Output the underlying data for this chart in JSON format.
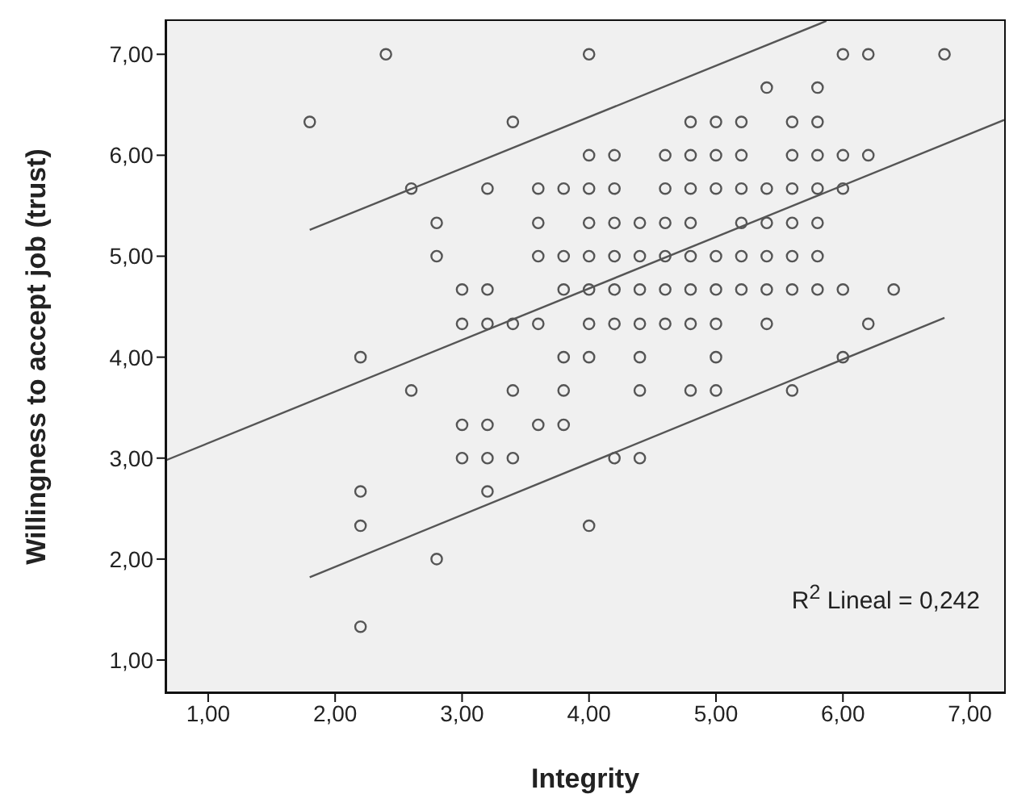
{
  "chart_data": {
    "type": "scatter",
    "xlabel": "Integrity",
    "ylabel": "Willingness to accept job (trust)",
    "annotations": [
      "R$^{2}$ Lineal = 0,242"
    ],
    "xlim": [
      0.67,
      7.27
    ],
    "ylim": [
      0.68,
      7.33
    ],
    "xticks": [
      {
        "value": 1,
        "label": "1,00"
      },
      {
        "value": 2,
        "label": "2,00"
      },
      {
        "value": 3,
        "label": "3,00"
      },
      {
        "value": 4,
        "label": "4,00"
      },
      {
        "value": 5,
        "label": "5,00"
      },
      {
        "value": 6,
        "label": "6,00"
      },
      {
        "value": 7,
        "label": "7,00"
      }
    ],
    "yticks": [
      {
        "value": 1,
        "label": "1,00"
      },
      {
        "value": 2,
        "label": "2,00"
      },
      {
        "value": 3,
        "label": "3,00"
      },
      {
        "value": 4,
        "label": "4,00"
      },
      {
        "value": 5,
        "label": "5,00"
      },
      {
        "value": 6,
        "label": "6,00"
      },
      {
        "value": 7,
        "label": "7,00"
      }
    ],
    "series": [
      {
        "marker": "circle",
        "color": "#555555",
        "x": [
          2.4,
          4.0,
          6.0,
          6.2,
          6.8,
          5.4,
          5.8,
          1.8,
          3.4,
          4.8,
          5.0,
          5.2,
          5.6,
          5.8,
          4.0,
          4.2,
          4.6,
          4.8,
          5.0,
          5.2,
          5.6,
          5.8,
          6.0,
          6.2,
          2.6,
          3.2,
          3.6,
          3.8,
          4.0,
          4.2,
          4.6,
          4.8,
          5.0,
          5.2,
          5.4,
          5.6,
          5.8,
          6.0,
          2.8,
          3.6,
          4.0,
          4.2,
          4.4,
          4.6,
          4.8,
          5.2,
          5.4,
          5.6,
          5.8,
          2.8,
          3.6,
          3.8,
          4.0,
          4.2,
          4.4,
          4.6,
          4.8,
          5.0,
          5.2,
          5.4,
          5.6,
          5.8,
          3.0,
          3.2,
          3.8,
          4.0,
          4.2,
          4.4,
          4.6,
          4.8,
          5.0,
          5.2,
          5.4,
          5.6,
          5.8,
          6.0,
          6.4,
          3.0,
          3.2,
          3.4,
          3.6,
          4.0,
          4.2,
          4.4,
          4.6,
          4.8,
          5.0,
          5.4,
          6.2,
          2.2,
          3.8,
          4.0,
          4.4,
          5.0,
          6.0,
          2.6,
          3.4,
          3.8,
          4.4,
          4.8,
          5.0,
          5.6,
          3.0,
          3.2,
          3.6,
          3.8,
          3.0,
          3.2,
          3.4,
          4.2,
          4.4,
          2.2,
          3.2,
          2.2,
          4.0,
          2.8,
          2.2
        ],
        "values": [
          7.0,
          7.0,
          7.0,
          7.0,
          7.0,
          6.67,
          6.67,
          6.33,
          6.33,
          6.33,
          6.33,
          6.33,
          6.33,
          6.33,
          6.0,
          6.0,
          6.0,
          6.0,
          6.0,
          6.0,
          6.0,
          6.0,
          6.0,
          6.0,
          5.67,
          5.67,
          5.67,
          5.67,
          5.67,
          5.67,
          5.67,
          5.67,
          5.67,
          5.67,
          5.67,
          5.67,
          5.67,
          5.67,
          5.33,
          5.33,
          5.33,
          5.33,
          5.33,
          5.33,
          5.33,
          5.33,
          5.33,
          5.33,
          5.33,
          5.0,
          5.0,
          5.0,
          5.0,
          5.0,
          5.0,
          5.0,
          5.0,
          5.0,
          5.0,
          5.0,
          5.0,
          5.0,
          4.67,
          4.67,
          4.67,
          4.67,
          4.67,
          4.67,
          4.67,
          4.67,
          4.67,
          4.67,
          4.67,
          4.67,
          4.67,
          4.67,
          4.67,
          4.33,
          4.33,
          4.33,
          4.33,
          4.33,
          4.33,
          4.33,
          4.33,
          4.33,
          4.33,
          4.33,
          4.33,
          4.0,
          4.0,
          4.0,
          4.0,
          4.0,
          4.0,
          3.67,
          3.67,
          3.67,
          3.67,
          3.67,
          3.67,
          3.67,
          3.33,
          3.33,
          3.33,
          3.33,
          3.0,
          3.0,
          3.0,
          3.0,
          3.0,
          2.67,
          2.67,
          2.33,
          2.33,
          2.0,
          1.33
        ]
      },
      {
        "type": "line",
        "marker": "none",
        "color": "#555555",
        "x": [
          0.67,
          7.27
        ],
        "values": [
          2.98,
          6.35
        ]
      },
      {
        "type": "line",
        "marker": "none",
        "color": "#555555",
        "x": [
          1.8,
          5.87
        ],
        "values": [
          5.26,
          7.33
        ]
      },
      {
        "type": "line",
        "marker": "none",
        "color": "#555555",
        "x": [
          1.8,
          6.8
        ],
        "values": [
          1.82,
          4.39
        ]
      }
    ]
  }
}
